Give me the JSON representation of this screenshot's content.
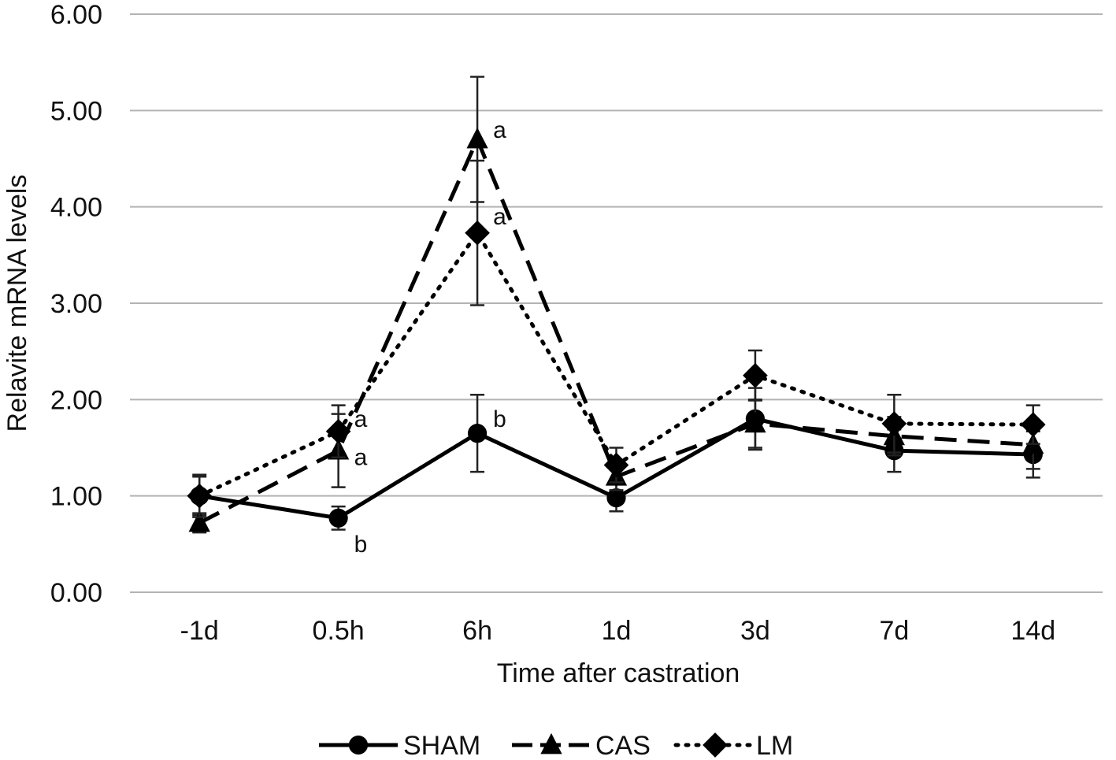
{
  "chart_data": {
    "type": "line",
    "title": "",
    "xlabel": "Time after castration",
    "ylabel": "Relavite mRNA levels",
    "categories": [
      "-1d",
      "0.5h",
      "6h",
      "1d",
      "3d",
      "7d",
      "14d"
    ],
    "ylim": [
      0,
      6
    ],
    "yticks": [
      0,
      1,
      2,
      3,
      4,
      5,
      6
    ],
    "ytick_labels": [
      "0.00",
      "1.00",
      "2.00",
      "3.00",
      "4.00",
      "5.00",
      "6.00"
    ],
    "grid": true,
    "legend_position": "bottom",
    "series": [
      {
        "name": "SHAM",
        "marker": "circle",
        "dash": "solid",
        "color": "#000000",
        "values": [
          1.0,
          0.77,
          1.65,
          0.98,
          1.8,
          1.47,
          1.43
        ],
        "errors": [
          0.2,
          0.12,
          0.4,
          0.14,
          0.32,
          0.22,
          0.24
        ]
      },
      {
        "name": "CAS",
        "marker": "triangle",
        "dash": "dashed",
        "color": "#000000",
        "values": [
          0.72,
          1.47,
          4.7,
          1.2,
          1.75,
          1.62,
          1.53
        ],
        "errors": [
          0.1,
          0.38,
          0.65,
          0.14,
          0.25,
          0.2,
          0.25
        ]
      },
      {
        "name": "LM",
        "marker": "diamond",
        "dash": "dotted",
        "color": "#000000",
        "values": [
          1.0,
          1.67,
          3.73,
          1.32,
          2.25,
          1.75,
          1.74
        ],
        "errors": [
          0.22,
          0.27,
          0.75,
          0.18,
          0.26,
          0.3,
          0.2
        ]
      }
    ],
    "annotations": [
      {
        "text": "a",
        "category": "0.5h",
        "y": 1.8
      },
      {
        "text": "a",
        "category": "0.5h",
        "y": 1.4
      },
      {
        "text": "b",
        "category": "0.5h",
        "y": 0.5
      },
      {
        "text": "a",
        "category": "6h",
        "y": 4.8
      },
      {
        "text": "a",
        "category": "6h",
        "y": 3.9
      },
      {
        "text": "b",
        "category": "6h",
        "y": 1.8
      }
    ]
  }
}
